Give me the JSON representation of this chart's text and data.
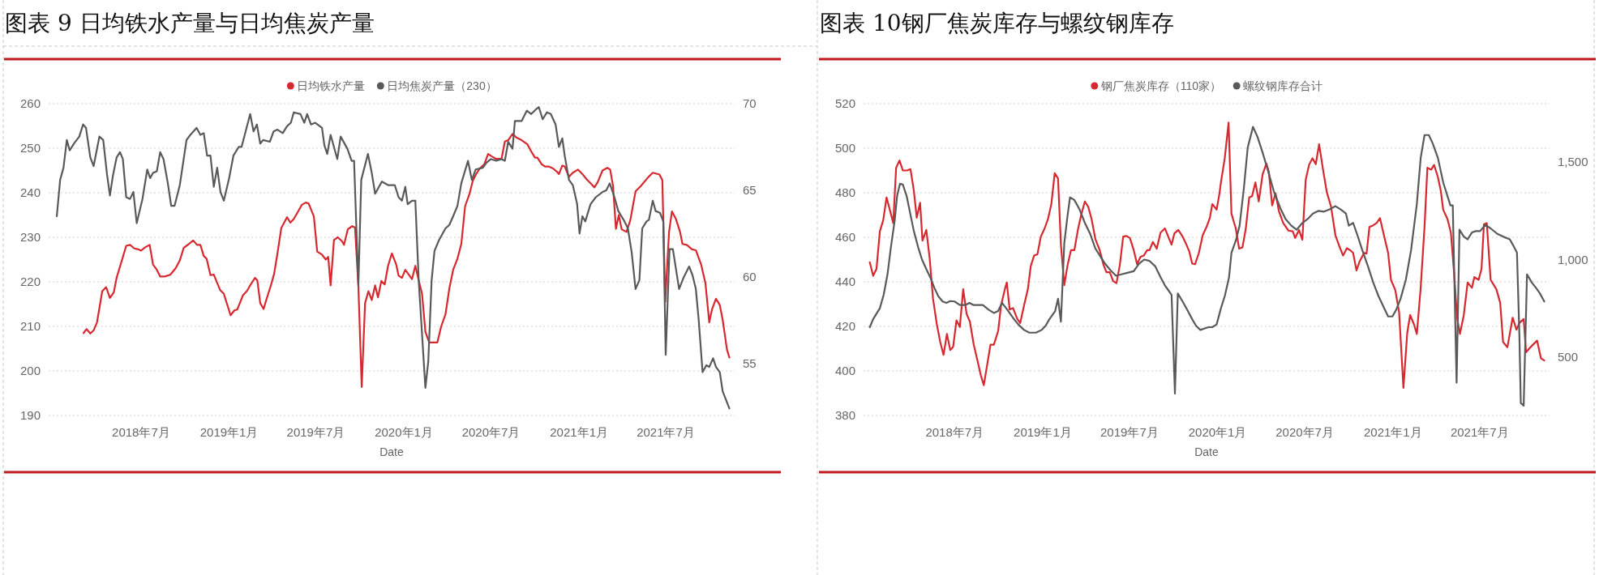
{
  "chart_data": [
    {
      "type": "line",
      "title": "图表 9 日均铁水产量与日均焦炭产量",
      "xlabel": "Date",
      "legend": "top",
      "grid": "y",
      "xlim": [
        "2017-12-20",
        "2021-11-22"
      ],
      "xticks": [
        {
          "value": "2018-07-01",
          "label": "2018年7月"
        },
        {
          "value": "2019-01-01",
          "label": "2019年1月"
        },
        {
          "value": "2019-07-01",
          "label": "2019年7月"
        },
        {
          "value": "2020-01-01",
          "label": "2020年1月"
        },
        {
          "value": "2020-07-01",
          "label": "2020年7月"
        },
        {
          "value": "2021-01-01",
          "label": "2021年1月"
        },
        {
          "value": "2021-07-01",
          "label": "2021年7月"
        }
      ],
      "ylim": [
        190,
        260
      ],
      "yticks": [
        190,
        200,
        210,
        220,
        230,
        240,
        250,
        260
      ],
      "y2lim": [
        52,
        70
      ],
      "y2ticks": [
        55,
        60,
        65,
        70
      ],
      "series": [
        {
          "name": "日均铁水产量",
          "color": "#d7282f",
          "axis": "y",
          "x": [
            "2018-03-03",
            "2018-03-09",
            "2018-03-17",
            "2018-03-24",
            "2018-03-31",
            "2018-04-11",
            "2018-04-19",
            "2018-04-27",
            "2018-05-05",
            "2018-05-11",
            "2018-05-23",
            "2018-05-31",
            "2018-06-08",
            "2018-06-17",
            "2018-06-25",
            "2018-07-01",
            "2018-07-09",
            "2018-07-19",
            "2018-07-26",
            "2018-08-03",
            "2018-08-10",
            "2018-08-20",
            "2018-08-31",
            "2018-09-11",
            "2018-09-20",
            "2018-09-28",
            "2018-10-09",
            "2018-10-18",
            "2018-10-26",
            "2018-11-02",
            "2018-11-09",
            "2018-11-15",
            "2018-11-23",
            "2018-11-30",
            "2018-12-13",
            "2018-12-21",
            "2019-01-04",
            "2019-01-12",
            "2019-01-18",
            "2019-01-30",
            "2019-02-07",
            "2019-02-15",
            "2019-02-24",
            "2019-03-01",
            "2019-03-07",
            "2019-03-14",
            "2019-03-21",
            "2019-03-29",
            "2019-04-05",
            "2019-04-12",
            "2019-04-20",
            "2019-05-02",
            "2019-05-09",
            "2019-05-16",
            "2019-05-24",
            "2019-06-02",
            "2019-06-10",
            "2019-06-16",
            "2019-06-27",
            "2019-07-04",
            "2019-07-14",
            "2019-07-22",
            "2019-07-27",
            "2019-08-01",
            "2019-08-08",
            "2019-08-16",
            "2019-08-25",
            "2019-08-29",
            "2019-09-06",
            "2019-09-15",
            "2019-09-21",
            "2019-09-28",
            "2019-10-05",
            "2019-10-12",
            "2019-10-19",
            "2019-10-26",
            "2019-11-02",
            "2019-11-08",
            "2019-11-15",
            "2019-11-22",
            "2019-11-29",
            "2019-12-07",
            "2019-12-16",
            "2019-12-21",
            "2019-12-28",
            "2020-01-04",
            "2020-01-18",
            "2020-01-25",
            "2020-02-01",
            "2020-02-08",
            "2020-02-15",
            "2020-02-23",
            "2020-03-11",
            "2020-03-19",
            "2020-03-28",
            "2020-04-05",
            "2020-04-13",
            "2020-04-22",
            "2020-04-30",
            "2020-05-08",
            "2020-05-17",
            "2020-05-24",
            "2020-05-31",
            "2020-06-08",
            "2020-06-17",
            "2020-06-25",
            "2020-07-02",
            "2020-07-12",
            "2020-07-23",
            "2020-07-30",
            "2020-08-06",
            "2020-08-15",
            "2020-08-23",
            "2020-09-03",
            "2020-09-15",
            "2020-09-24",
            "2020-10-01",
            "2020-10-06",
            "2020-10-15",
            "2020-10-22",
            "2020-10-29",
            "2020-11-07",
            "2020-11-15",
            "2020-11-20",
            "2020-11-27",
            "2020-12-02",
            "2020-12-11",
            "2020-12-19",
            "2020-12-30",
            "2021-01-08",
            "2021-01-17",
            "2021-01-28",
            "2021-02-02",
            "2021-02-09",
            "2021-02-19",
            "2021-03-01",
            "2021-03-07",
            "2021-03-13",
            "2021-03-19",
            "2021-03-25",
            "2021-03-31",
            "2021-04-10",
            "2021-04-18",
            "2021-04-29",
            "2021-05-10",
            "2021-05-24",
            "2021-06-04",
            "2021-06-18",
            "2021-06-24",
            "2021-06-30",
            "2021-07-08",
            "2021-07-14",
            "2021-07-22",
            "2021-07-31",
            "2021-08-05",
            "2021-08-14",
            "2021-08-25",
            "2021-09-02",
            "2021-09-13",
            "2021-09-22",
            "2021-09-30",
            "2021-10-06",
            "2021-10-14",
            "2021-10-22",
            "2021-10-28",
            "2021-11-06",
            "2021-11-11"
          ],
          "values": [
            208.5,
            209.4,
            208.4,
            209.1,
            210.9,
            217.9,
            218.8,
            216.4,
            217.6,
            220.9,
            225.2,
            228.1,
            228.3,
            227.5,
            227.3,
            227.0,
            227.7,
            228.3,
            223.9,
            222.7,
            221.2,
            221.2,
            221.6,
            223.0,
            224.8,
            227.6,
            228.5,
            229.3,
            228.3,
            228.3,
            225.8,
            225.2,
            221.5,
            221.6,
            218.2,
            217.3,
            212.5,
            213.6,
            213.8,
            217.0,
            217.9,
            219.4,
            220.9,
            220.3,
            215.2,
            213.9,
            216.4,
            219.1,
            221.8,
            226.4,
            232.1,
            234.5,
            233.3,
            234.1,
            235.6,
            237.3,
            237.8,
            237.6,
            234.7,
            226.8,
            226.1,
            225.0,
            225.6,
            219.2,
            229.4,
            230.0,
            229.1,
            228.3,
            231.8,
            232.5,
            232.2,
            219.1,
            196.4,
            215.2,
            217.9,
            215.9,
            219.2,
            216.5,
            220.2,
            219.4,
            223.6,
            226.4,
            223.9,
            221.4,
            220.9,
            222.7,
            220.6,
            223.6,
            220.3,
            217.3,
            208.8,
            206.4,
            206.4,
            210.0,
            212.7,
            218.5,
            222.7,
            225.2,
            228.5,
            237.0,
            239.7,
            242.7,
            244.2,
            245.5,
            246.4,
            248.7,
            248.2,
            247.6,
            247.6,
            251.5,
            251.8,
            253.2,
            252.4,
            251.8,
            250.9,
            249.1,
            247.9,
            247.9,
            246.4,
            245.9,
            245.9,
            245.5,
            244.8,
            244.2,
            246.1,
            245.9,
            243.6,
            244.5,
            245.2,
            244.2,
            243.0,
            241.8,
            241.2,
            242.4,
            245.0,
            245.6,
            245.2,
            241.5,
            231.9,
            235.0,
            231.8,
            231.2,
            233.8,
            240.3,
            241.5,
            243.3,
            244.5,
            244.1,
            242.8,
            215.5,
            231.2,
            235.8,
            234.2,
            231.2,
            228.5,
            228.3,
            227.3,
            227.1,
            223.9,
            219.7,
            210.9,
            213.9,
            216.2,
            214.8,
            211.5,
            204.8,
            203.0
          ]
        },
        {
          "name": "日均焦炭产量（230）",
          "color": "#595959",
          "axis": "y2",
          "x": [
            "2018-01-06",
            "2018-01-13",
            "2018-01-20",
            "2018-01-27",
            "2018-02-02",
            "2018-02-11",
            "2018-02-22",
            "2018-03-02",
            "2018-03-08",
            "2018-03-17",
            "2018-03-24",
            "2018-04-05",
            "2018-04-13",
            "2018-04-21",
            "2018-04-27",
            "2018-05-03",
            "2018-05-11",
            "2018-05-18",
            "2018-05-24",
            "2018-05-31",
            "2018-06-08",
            "2018-06-15",
            "2018-06-22",
            "2018-07-04",
            "2018-07-14",
            "2018-07-20",
            "2018-07-26",
            "2018-08-03",
            "2018-08-10",
            "2018-08-17",
            "2018-08-26",
            "2018-09-02",
            "2018-09-09",
            "2018-09-20",
            "2018-10-04",
            "2018-10-12",
            "2018-10-25",
            "2018-11-02",
            "2018-11-09",
            "2018-11-16",
            "2018-11-23",
            "2018-11-30",
            "2018-12-07",
            "2018-12-14",
            "2018-12-21",
            "2019-01-01",
            "2019-01-10",
            "2019-01-21",
            "2019-01-27",
            "2019-02-14",
            "2019-02-21",
            "2019-02-28",
            "2019-03-07",
            "2019-03-13",
            "2019-03-27",
            "2019-04-04",
            "2019-04-12",
            "2019-04-23",
            "2019-05-02",
            "2019-05-10",
            "2019-05-16",
            "2019-05-30",
            "2019-06-07",
            "2019-06-13",
            "2019-06-21",
            "2019-06-30",
            "2019-07-14",
            "2019-07-19",
            "2019-07-25",
            "2019-08-01",
            "2019-08-15",
            "2019-08-22",
            "2019-09-05",
            "2019-09-14",
            "2019-09-19",
            "2019-09-28",
            "2019-10-04",
            "2019-10-18",
            "2019-10-26",
            "2019-11-02",
            "2019-11-16",
            "2019-11-29",
            "2019-12-13",
            "2019-12-21",
            "2019-12-28",
            "2020-01-04",
            "2020-01-09",
            "2020-01-18",
            "2020-01-25",
            "2020-02-01",
            "2020-02-15",
            "2020-02-21",
            "2020-02-28",
            "2020-03-05",
            "2020-03-14",
            "2020-03-28",
            "2020-04-05",
            "2020-04-13",
            "2020-04-22",
            "2020-04-30",
            "2020-05-14",
            "2020-05-22",
            "2020-05-30",
            "2020-06-14",
            "2020-06-22",
            "2020-07-01",
            "2020-07-12",
            "2020-07-23",
            "2020-07-30",
            "2020-08-06",
            "2020-08-15",
            "2020-08-20",
            "2020-09-03",
            "2020-09-14",
            "2020-09-23",
            "2020-10-04",
            "2020-10-09",
            "2020-10-17",
            "2020-10-26",
            "2020-11-03",
            "2020-11-13",
            "2020-11-20",
            "2020-11-27",
            "2020-12-02",
            "2020-12-11",
            "2020-12-19",
            "2020-12-28",
            "2021-01-02",
            "2021-01-08",
            "2021-01-14",
            "2021-01-25",
            "2021-02-05",
            "2021-02-19",
            "2021-02-27",
            "2021-03-06",
            "2021-03-16",
            "2021-03-24",
            "2021-04-04",
            "2021-04-13",
            "2021-04-21",
            "2021-04-29",
            "2021-05-07",
            "2021-05-13",
            "2021-05-22",
            "2021-05-27",
            "2021-06-04",
            "2021-06-10",
            "2021-06-19",
            "2021-06-26",
            "2021-07-01",
            "2021-07-09",
            "2021-07-16",
            "2021-07-29",
            "2021-08-08",
            "2021-08-19",
            "2021-08-26",
            "2021-09-02",
            "2021-09-08",
            "2021-09-16",
            "2021-09-24",
            "2021-09-30",
            "2021-10-08",
            "2021-10-14",
            "2021-10-22",
            "2021-10-28",
            "2021-11-11"
          ],
          "values": [
            63.5,
            65.6,
            66.3,
            67.9,
            67.3,
            67.7,
            68.1,
            68.8,
            68.6,
            66.9,
            66.4,
            68.1,
            67.9,
            65.9,
            64.7,
            65.8,
            66.9,
            67.2,
            66.8,
            64.6,
            64.5,
            64.9,
            63.1,
            64.5,
            66.2,
            65.7,
            66.0,
            66.1,
            67.2,
            66.8,
            65.4,
            64.1,
            64.1,
            65.3,
            67.9,
            68.2,
            68.6,
            68.2,
            68.3,
            67.0,
            67.0,
            65.2,
            66.3,
            64.9,
            64.4,
            65.7,
            67.0,
            67.5,
            67.5,
            69.4,
            68.4,
            68.8,
            67.7,
            67.9,
            67.8,
            68.4,
            68.5,
            68.3,
            68.7,
            68.9,
            69.5,
            69.4,
            68.9,
            69.4,
            68.8,
            68.9,
            68.6,
            67.6,
            67.1,
            68.2,
            66.8,
            68.1,
            67.4,
            66.7,
            66.7,
            59.5,
            65.6,
            67.1,
            66.0,
            64.8,
            65.5,
            65.3,
            65.3,
            64.6,
            64.4,
            65.2,
            64.2,
            64.4,
            64.4,
            59.8,
            53.6,
            55.1,
            59.8,
            61.5,
            62.1,
            62.8,
            63.0,
            63.5,
            64.1,
            65.4,
            66.7,
            65.6,
            66.2,
            66.3,
            66.6,
            66.8,
            66.7,
            66.8,
            66.7,
            67.8,
            67.4,
            69.0,
            69.0,
            69.6,
            69.4,
            69.7,
            69.8,
            69.1,
            69.5,
            69.4,
            68.8,
            67.5,
            68.0,
            67.0,
            65.6,
            65.3,
            64.2,
            62.5,
            63.5,
            63.2,
            64.2,
            64.6,
            64.9,
            65.0,
            65.4,
            64.6,
            63.8,
            63.3,
            62.8,
            61.4,
            59.3,
            59.8,
            62.8,
            63.2,
            63.3,
            64.4,
            63.8,
            63.7,
            63.2,
            55.5,
            61.6,
            61.6,
            59.3,
            60.0,
            60.6,
            60.1,
            59.3,
            57.5,
            54.5,
            54.9,
            54.8,
            55.3,
            54.8,
            54.5,
            53.4,
            52.4
          ]
        }
      ]
    },
    {
      "type": "line",
      "title": "图表 10钢厂焦炭库存与螺纹钢库存",
      "xlabel": "Date",
      "legend": "top",
      "grid": "y",
      "xlim": [
        "2017-12-23",
        "2021-11-24"
      ],
      "xticks": [
        {
          "value": "2018-07-01",
          "label": "2018年7月"
        },
        {
          "value": "2019-01-01",
          "label": "2019年1月"
        },
        {
          "value": "2019-07-01",
          "label": "2019年7月"
        },
        {
          "value": "2020-01-01",
          "label": "2020年1月"
        },
        {
          "value": "2020-07-01",
          "label": "2020年7月"
        },
        {
          "value": "2021-01-01",
          "label": "2021年1月"
        },
        {
          "value": "2021-07-01",
          "label": "2021年7月"
        }
      ],
      "ylim": [
        380,
        520
      ],
      "yticks": [
        380,
        400,
        420,
        440,
        460,
        480,
        500,
        520
      ],
      "y2lim": [
        200,
        1800
      ],
      "y2ticks": [
        500,
        {
          "value": 1000,
          "label": "1,000"
        },
        {
          "value": 1500,
          "label": "1,500"
        }
      ],
      "series": [
        {
          "name": "钢厂焦炭库存（110家）",
          "color": "#d7282f",
          "axis": "y",
          "x": [
            "2018-01-05",
            "2018-01-12",
            "2018-01-19",
            "2018-01-26",
            "2018-02-02",
            "2018-02-09",
            "2018-02-18",
            "2018-02-23",
            "2018-03-01",
            "2018-03-08",
            "2018-03-15",
            "2018-03-24",
            "2018-03-31",
            "2018-04-07",
            "2018-04-13",
            "2018-04-20",
            "2018-04-25",
            "2018-05-03",
            "2018-05-10",
            "2018-05-17",
            "2018-05-25",
            "2018-06-01",
            "2018-06-08",
            "2018-06-15",
            "2018-06-22",
            "2018-06-28",
            "2018-07-05",
            "2018-07-12",
            "2018-07-19",
            "2018-07-26",
            "2018-08-02",
            "2018-08-10",
            "2018-08-18",
            "2018-08-25",
            "2018-08-31",
            "2018-09-07",
            "2018-09-14",
            "2018-09-21",
            "2018-09-30",
            "2018-10-06",
            "2018-10-14",
            "2018-10-18",
            "2018-10-24",
            "2018-10-31",
            "2018-11-09",
            "2018-11-15",
            "2018-11-23",
            "2018-12-01",
            "2018-12-07",
            "2018-12-14",
            "2018-12-21",
            "2018-12-28",
            "2019-01-05",
            "2019-01-12",
            "2019-01-19",
            "2019-01-26",
            "2019-02-02",
            "2019-02-08",
            "2019-02-15",
            "2019-02-22",
            "2019-03-01",
            "2019-03-08",
            "2019-03-16",
            "2019-03-23",
            "2019-03-30",
            "2019-04-06",
            "2019-04-13",
            "2019-04-21",
            "2019-04-30",
            "2019-05-08",
            "2019-05-14",
            "2019-05-21",
            "2019-05-28",
            "2019-06-04",
            "2019-06-11",
            "2019-06-18",
            "2019-06-25",
            "2019-07-02",
            "2019-07-10",
            "2019-07-17",
            "2019-07-24",
            "2019-07-31",
            "2019-08-07",
            "2019-08-12",
            "2019-08-19",
            "2019-08-27",
            "2019-09-04",
            "2019-09-13",
            "2019-09-20",
            "2019-09-27",
            "2019-10-03",
            "2019-10-11",
            "2019-10-20",
            "2019-10-28",
            "2019-11-03",
            "2019-11-09",
            "2019-11-15",
            "2019-11-23",
            "2019-12-01",
            "2019-12-10",
            "2019-12-16",
            "2019-12-21",
            "2019-12-30",
            "2020-01-05",
            "2020-01-08",
            "2020-01-16",
            "2020-01-24",
            "2020-01-30",
            "2020-02-08",
            "2020-02-15",
            "2020-02-22",
            "2020-02-29",
            "2020-03-07",
            "2020-03-13",
            "2020-03-20",
            "2020-03-27",
            "2020-04-04",
            "2020-04-12",
            "2020-04-17",
            "2020-04-24",
            "2020-05-01",
            "2020-05-08",
            "2020-05-17",
            "2020-05-28",
            "2020-06-06",
            "2020-06-11",
            "2020-06-19",
            "2020-06-26",
            "2020-07-03",
            "2020-07-10",
            "2020-07-17",
            "2020-07-24",
            "2020-07-31",
            "2020-08-08",
            "2020-08-16",
            "2020-08-25",
            "2020-09-03",
            "2020-09-11",
            "2020-09-19",
            "2020-09-27",
            "2020-10-04",
            "2020-10-10",
            "2020-10-17",
            "2020-10-24",
            "2020-11-02",
            "2020-11-07",
            "2020-11-13",
            "2020-11-21",
            "2020-11-28",
            "2020-12-05",
            "2020-12-14",
            "2020-12-22",
            "2020-12-28",
            "2021-01-06",
            "2021-01-14",
            "2021-01-23",
            "2021-01-31",
            "2021-02-06",
            "2021-02-14",
            "2021-02-20",
            "2021-02-28",
            "2021-03-08",
            "2021-03-14",
            "2021-03-22",
            "2021-03-28",
            "2021-04-05",
            "2021-04-11",
            "2021-04-16",
            "2021-04-25",
            "2021-05-02",
            "2021-05-09",
            "2021-05-15",
            "2021-05-21",
            "2021-05-29",
            "2021-06-06",
            "2021-06-15",
            "2021-06-20",
            "2021-06-29",
            "2021-07-05",
            "2021-07-10",
            "2021-07-16",
            "2021-07-24",
            "2021-08-05",
            "2021-08-13",
            "2021-08-19",
            "2021-08-28",
            "2021-09-08",
            "2021-09-16",
            "2021-09-22",
            "2021-10-01",
            "2021-10-06",
            "2021-10-15",
            "2021-10-29",
            "2021-11-06",
            "2021-11-13"
          ],
          "values": [
            448.8,
            442.7,
            445.8,
            462.7,
            467.6,
            477.9,
            470.6,
            466.4,
            491.2,
            494.5,
            490.0,
            490.0,
            490.6,
            480.9,
            468.8,
            475.5,
            458.5,
            463.3,
            450.6,
            432.4,
            420.9,
            413.0,
            407.2,
            416.6,
            409.4,
            410.8,
            422.7,
            419.7,
            436.7,
            425.7,
            422.1,
            411.8,
            404.5,
            397.8,
            393.6,
            402.7,
            411.8,
            411.8,
            417.9,
            429.4,
            436.7,
            439.7,
            427.6,
            428.2,
            423.3,
            421.5,
            429.4,
            436.7,
            447.0,
            451.8,
            452.4,
            460.3,
            464.0,
            468.2,
            474.9,
            488.8,
            486.4,
            456.7,
            438.5,
            447.6,
            454.2,
            454.2,
            464.0,
            470.6,
            476.1,
            473.7,
            468.2,
            459.1,
            454.2,
            447.6,
            444.3,
            444.3,
            440.3,
            439.4,
            447.6,
            460.3,
            460.6,
            459.7,
            454.2,
            447.9,
            451.2,
            451.8,
            454.2,
            454.2,
            457.9,
            454.9,
            462.1,
            464.0,
            460.3,
            456.7,
            461.8,
            463.3,
            460.3,
            456.7,
            453.6,
            448.2,
            447.9,
            453.0,
            460.9,
            465.2,
            468.8,
            474.9,
            472.4,
            479.7,
            484.6,
            495.5,
            511.5,
            470.6,
            464.0,
            454.9,
            455.5,
            464.0,
            477.9,
            478.5,
            484.6,
            476.1,
            488.2,
            493.1,
            489.4,
            474.3,
            479.7,
            471.8,
            466.4,
            463.0,
            462.7,
            459.7,
            463.3,
            458.9,
            485.8,
            492.5,
            495.5,
            492.8,
            501.8,
            490.6,
            480.3,
            473.7,
            460.9,
            456.1,
            451.8,
            455.1,
            454.2,
            453.0,
            445.1,
            449.4,
            453.0,
            452.7,
            464.6,
            465.4,
            466.4,
            468.6,
            460.3,
            453.0,
            440.9,
            436.3,
            426.3,
            392.4,
            417.2,
            425.1,
            420.9,
            416.6,
            437.3,
            464.6,
            491.2,
            490.4,
            492.5,
            487.0,
            480.9,
            472.4,
            468.2,
            462.1,
            443.3,
            423.9,
            416.6,
            425.1,
            439.7,
            437.3,
            442.1,
            440.9,
            445.8,
            465.8,
            466.4,
            440.9,
            436.7,
            430.6,
            413.0,
            410.6,
            423.9,
            418.5,
            421.5,
            423.3,
            408.4,
            410.6,
            413.6,
            405.7,
            404.7
          ]
        },
        {
          "name": "螺纹钢库存合计",
          "color": "#595959",
          "axis": "y2",
          "x": [
            "2018-01-05",
            "2018-01-12",
            "2018-01-19",
            "2018-01-26",
            "2018-02-03",
            "2018-02-11",
            "2018-02-18",
            "2018-02-26",
            "2018-03-03",
            "2018-03-09",
            "2018-03-15",
            "2018-03-23",
            "2018-03-31",
            "2018-04-07",
            "2018-04-16",
            "2018-04-24",
            "2018-05-03",
            "2018-05-11",
            "2018-05-20",
            "2018-05-28",
            "2018-06-06",
            "2018-06-14",
            "2018-06-22",
            "2018-07-01",
            "2018-07-12",
            "2018-07-24",
            "2018-08-01",
            "2018-08-09",
            "2018-08-21",
            "2018-08-29",
            "2018-09-10",
            "2018-09-21",
            "2018-09-30",
            "2018-10-08",
            "2018-10-19",
            "2018-10-31",
            "2018-11-11",
            "2018-11-23",
            "2018-12-04",
            "2018-12-18",
            "2018-12-30",
            "2019-01-07",
            "2019-01-15",
            "2019-01-27",
            "2019-02-02",
            "2019-02-08",
            "2019-02-15",
            "2019-02-22",
            "2019-02-27",
            "2019-03-08",
            "2019-03-19",
            "2019-03-30",
            "2019-04-10",
            "2019-04-21",
            "2019-04-30",
            "2019-05-11",
            "2019-05-23",
            "2019-06-03",
            "2019-06-14",
            "2019-06-25",
            "2019-07-10",
            "2019-07-21",
            "2019-08-01",
            "2019-08-12",
            "2019-08-24",
            "2019-09-04",
            "2019-09-13",
            "2019-09-21",
            "2019-09-27",
            "2019-10-04",
            "2019-10-10",
            "2019-10-20",
            "2019-10-31",
            "2019-11-09",
            "2019-11-17",
            "2019-11-26",
            "2019-12-04",
            "2019-12-13",
            "2019-12-21",
            "2019-12-30",
            "2020-01-05",
            "2020-01-08",
            "2020-01-16",
            "2020-01-25",
            "2020-01-30",
            "2020-02-08",
            "2020-02-16",
            "2020-02-25",
            "2020-03-04",
            "2020-03-15",
            "2020-03-24",
            "2020-04-04",
            "2020-04-15",
            "2020-04-27",
            "2020-05-11",
            "2020-05-22",
            "2020-06-03",
            "2020-06-14",
            "2020-06-26",
            "2020-07-07",
            "2020-07-18",
            "2020-07-30",
            "2020-08-10",
            "2020-08-21",
            "2020-09-03",
            "2020-09-14",
            "2020-09-25",
            "2020-10-01",
            "2020-10-10",
            "2020-10-18",
            "2020-10-29",
            "2020-11-10",
            "2020-11-21",
            "2020-12-02",
            "2020-12-14",
            "2020-12-22",
            "2020-12-31",
            "2021-01-08",
            "2021-01-17",
            "2021-01-28",
            "2021-02-08",
            "2021-02-20",
            "2021-02-28",
            "2021-03-08",
            "2021-03-17",
            "2021-03-25",
            "2021-04-05",
            "2021-04-16",
            "2021-04-25",
            "2021-05-01",
            "2021-05-06",
            "2021-05-14",
            "2021-05-20",
            "2021-05-29",
            "2021-06-06",
            "2021-06-15",
            "2021-06-23",
            "2021-07-02",
            "2021-07-13",
            "2021-07-24",
            "2021-08-07",
            "2021-08-19",
            "2021-09-02",
            "2021-09-10",
            "2021-09-17",
            "2021-09-22",
            "2021-09-25",
            "2021-10-01",
            "2021-10-08",
            "2021-10-18",
            "2021-10-27",
            "2021-11-04",
            "2021-11-13"
          ],
          "values": [
            653,
            694,
            722,
            750,
            819,
            924,
            1062,
            1201,
            1326,
            1389,
            1385,
            1326,
            1229,
            1146,
            1063,
            1000,
            951,
            910,
            854,
            812,
            785,
            778,
            787,
            785,
            767,
            767,
            778,
            767,
            767,
            767,
            743,
            726,
            736,
            778,
            743,
            701,
            667,
            639,
            625,
            625,
            639,
            660,
            694,
            736,
            799,
            681,
            1083,
            1229,
            1319,
            1306,
            1257,
            1188,
            1132,
            1056,
            1021,
            979,
            944,
            917,
            924,
            931,
            940,
            979,
            1000,
            993,
            965,
            910,
            868,
            840,
            819,
            312,
            826,
            785,
            736,
            694,
            660,
            639,
            646,
            653,
            653,
            667,
            722,
            750,
            812,
            910,
            1035,
            1097,
            1174,
            1368,
            1576,
            1681,
            1632,
            1549,
            1458,
            1354,
            1264,
            1208,
            1174,
            1153,
            1188,
            1208,
            1236,
            1250,
            1246,
            1257,
            1274,
            1257,
            1236,
            1174,
            1188,
            1132,
            1049,
            965,
            882,
            812,
            750,
            708,
            708,
            743,
            799,
            896,
            1049,
            1285,
            1521,
            1639,
            1639,
            1597,
            1521,
            1396,
            1326,
            1278,
            1278,
            368,
            1153,
            1118,
            1104,
            1139,
            1146,
            1146,
            1178,
            1160,
            1132,
            1118,
            1104,
            1069,
            1035,
            618,
            264,
            250,
            924,
            882,
            854,
            826,
            785
          ]
        }
      ]
    }
  ]
}
